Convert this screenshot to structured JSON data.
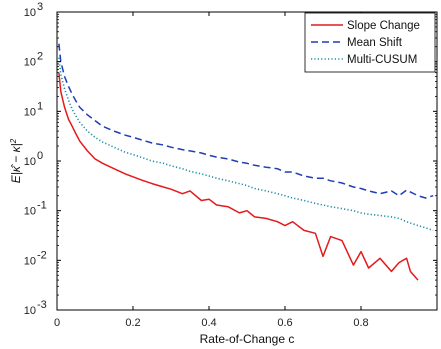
{
  "chart_data": {
    "type": "line",
    "title": "",
    "xlabel": "Rate-of-Change c",
    "ylabel": "E|κ̂ − κ|²",
    "ylabel_parts": {
      "prefix": "E|",
      "hat_var": "κ",
      "middle": " − κ|",
      "exponent": "2"
    },
    "xlim": [
      0,
      1
    ],
    "ylim": [
      0.001,
      1000
    ],
    "yscale": "log",
    "grid": false,
    "legend_position": "top-right",
    "x_ticks": [
      {
        "value": 0,
        "label": "0"
      },
      {
        "value": 0.2,
        "label": "0.2"
      },
      {
        "value": 0.4,
        "label": "0.4"
      },
      {
        "value": 0.6,
        "label": "0.6"
      },
      {
        "value": 0.8,
        "label": "0.8"
      }
    ],
    "y_ticks": [
      {
        "value": 0.001,
        "base": "10",
        "exp": "-3"
      },
      {
        "value": 0.01,
        "base": "10",
        "exp": "-2"
      },
      {
        "value": 0.1,
        "base": "10",
        "exp": "-1"
      },
      {
        "value": 1,
        "base": "10",
        "exp": "0"
      },
      {
        "value": 10,
        "base": "10",
        "exp": "1"
      },
      {
        "value": 100,
        "base": "10",
        "exp": "2"
      },
      {
        "value": 1000,
        "base": "10",
        "exp": "3"
      }
    ],
    "series": [
      {
        "name": "Slope Change",
        "color": "#e41a1c",
        "dash": "solid",
        "x": [
          0.005,
          0.01,
          0.02,
          0.03,
          0.04,
          0.05,
          0.06,
          0.08,
          0.1,
          0.12,
          0.15,
          0.18,
          0.2,
          0.22,
          0.25,
          0.28,
          0.3,
          0.33,
          0.35,
          0.38,
          0.4,
          0.42,
          0.45,
          0.48,
          0.5,
          0.52,
          0.55,
          0.58,
          0.6,
          0.62,
          0.65,
          0.68,
          0.7,
          0.72,
          0.75,
          0.78,
          0.8,
          0.82,
          0.85,
          0.88,
          0.9,
          0.92,
          0.93,
          0.95
        ],
        "y": [
          60,
          25,
          12,
          7,
          5,
          3.5,
          2.5,
          1.6,
          1.1,
          0.9,
          0.7,
          0.55,
          0.48,
          0.42,
          0.35,
          0.3,
          0.27,
          0.22,
          0.25,
          0.16,
          0.17,
          0.13,
          0.12,
          0.09,
          0.1,
          0.075,
          0.07,
          0.06,
          0.05,
          0.06,
          0.04,
          0.035,
          0.012,
          0.03,
          0.025,
          0.008,
          0.015,
          0.007,
          0.011,
          0.006,
          0.009,
          0.011,
          0.006,
          0.004
        ]
      },
      {
        "name": "Mean Shift",
        "color": "#1f3fb4",
        "dash": "dashed",
        "x": [
          0.005,
          0.01,
          0.02,
          0.03,
          0.04,
          0.05,
          0.06,
          0.08,
          0.1,
          0.12,
          0.15,
          0.18,
          0.2,
          0.22,
          0.25,
          0.28,
          0.3,
          0.33,
          0.35,
          0.38,
          0.4,
          0.42,
          0.45,
          0.48,
          0.5,
          0.52,
          0.55,
          0.58,
          0.6,
          0.62,
          0.65,
          0.68,
          0.7,
          0.72,
          0.75,
          0.78,
          0.8,
          0.82,
          0.85,
          0.88,
          0.9,
          0.92,
          0.95,
          0.97,
          0.99
        ],
        "y": [
          230,
          100,
          50,
          32,
          22,
          16,
          12,
          8.5,
          6.5,
          5,
          4,
          3.3,
          3,
          2.7,
          2.3,
          2.1,
          1.9,
          1.7,
          1.6,
          1.45,
          1.3,
          1.2,
          1.1,
          0.95,
          0.9,
          0.82,
          0.75,
          0.7,
          0.6,
          0.6,
          0.5,
          0.45,
          0.45,
          0.4,
          0.36,
          0.3,
          0.28,
          0.25,
          0.22,
          0.25,
          0.2,
          0.26,
          0.2,
          0.18,
          0.2
        ]
      },
      {
        "name": "Multi-CUSUM",
        "color": "#1b8fa8",
        "dash": "dotted",
        "x": [
          0.005,
          0.01,
          0.02,
          0.03,
          0.04,
          0.05,
          0.06,
          0.08,
          0.1,
          0.12,
          0.15,
          0.18,
          0.2,
          0.22,
          0.25,
          0.28,
          0.3,
          0.33,
          0.35,
          0.38,
          0.4,
          0.42,
          0.45,
          0.48,
          0.5,
          0.52,
          0.55,
          0.58,
          0.6,
          0.62,
          0.65,
          0.68,
          0.7,
          0.72,
          0.75,
          0.78,
          0.8,
          0.82,
          0.85,
          0.88,
          0.9,
          0.92,
          0.95,
          0.97,
          0.99
        ],
        "y": [
          120,
          55,
          28,
          17,
          11,
          8,
          6,
          4,
          3,
          2.4,
          1.9,
          1.5,
          1.35,
          1.2,
          1.0,
          0.9,
          0.8,
          0.7,
          0.62,
          0.55,
          0.5,
          0.45,
          0.4,
          0.35,
          0.32,
          0.28,
          0.25,
          0.22,
          0.2,
          0.18,
          0.16,
          0.14,
          0.13,
          0.12,
          0.11,
          0.1,
          0.09,
          0.085,
          0.08,
          0.075,
          0.07,
          0.06,
          0.05,
          0.045,
          0.04
        ]
      }
    ]
  }
}
